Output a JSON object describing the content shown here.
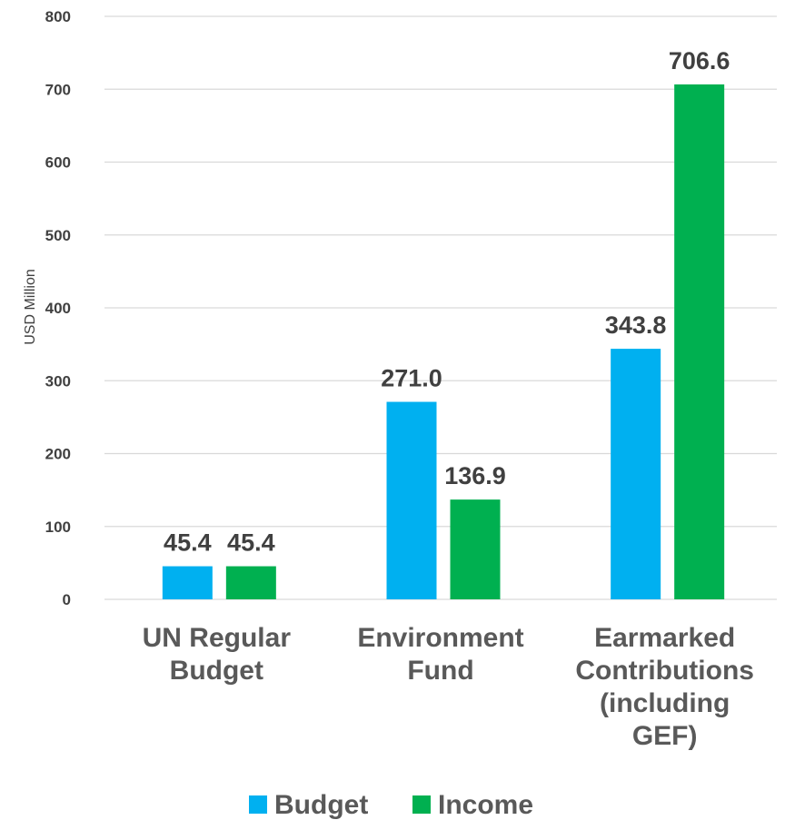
{
  "chart_data": {
    "type": "bar",
    "categories": [
      [
        "UN Regular",
        "Budget"
      ],
      [
        "Environment",
        "Fund"
      ],
      [
        "Earmarked",
        "Contributions",
        "(including",
        "GEF)"
      ]
    ],
    "series": [
      {
        "name": "Budget",
        "values": [
          45.4,
          271.0,
          343.8
        ],
        "labels": [
          "45.4",
          "271.0",
          "343.8"
        ],
        "color": "#00b0f0"
      },
      {
        "name": "Income",
        "values": [
          45.4,
          136.9,
          706.6
        ],
        "labels": [
          "45.4",
          "136.9",
          "706.6"
        ],
        "color": "#00b050"
      }
    ],
    "title": "",
    "xlabel": "",
    "ylabel": "USD Million",
    "ylim": [
      0,
      800
    ],
    "yticks": [
      0,
      100,
      200,
      300,
      400,
      500,
      600,
      700,
      800
    ],
    "ytick_labels": [
      "0",
      "100",
      "200",
      "300",
      "400",
      "500",
      "600",
      "700",
      "800"
    ],
    "grid": true,
    "legend_position": "bottom"
  }
}
